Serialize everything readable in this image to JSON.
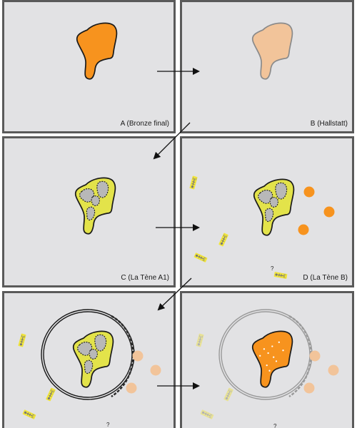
{
  "panels": {
    "a": {
      "label": "A (Bronze final)"
    },
    "b": {
      "label": "B (Hallstatt)"
    },
    "c": {
      "label": "C (La Tène A1)"
    },
    "d": {
      "label": "D (La Tène B)",
      "question": "?"
    },
    "e": {
      "question": "?"
    },
    "f": {
      "question": "?"
    }
  },
  "colors": {
    "background": "#e2e2e4",
    "border": "#5a5a5a",
    "orange": "#f7931e",
    "pale_orange": "#f2c49a",
    "yellow": "#e3e34a",
    "burial_yellow": "#f0e43a"
  }
}
